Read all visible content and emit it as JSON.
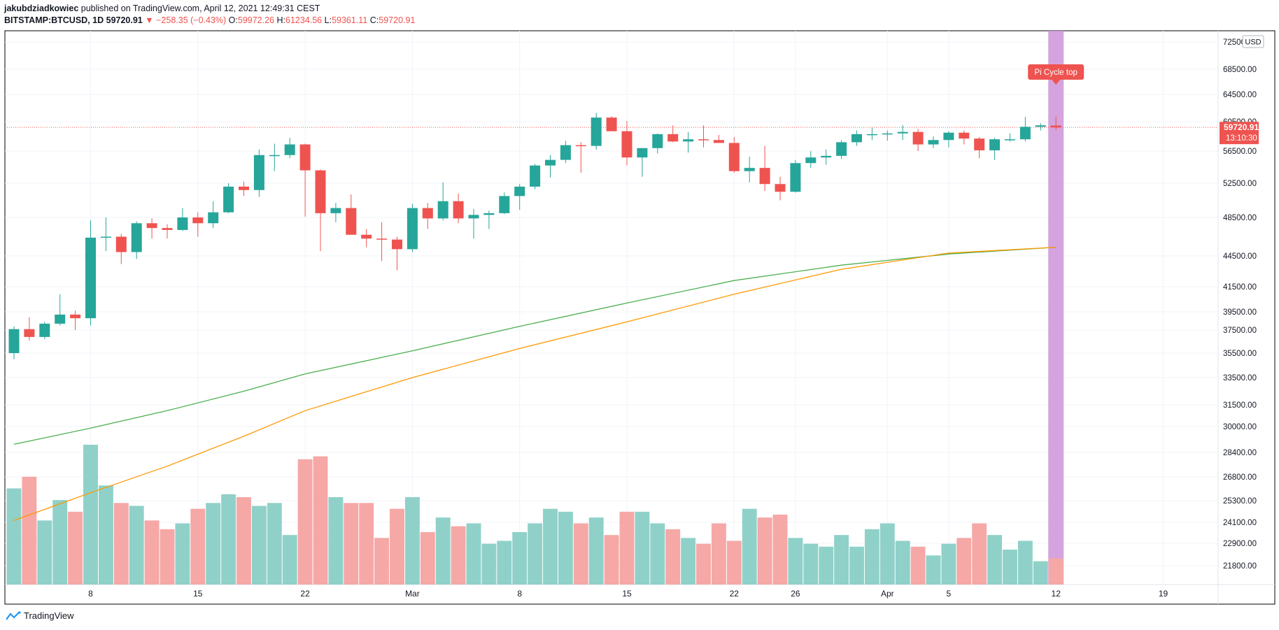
{
  "header": {
    "author": "jakubdziadkowiec",
    "published": "published on TradingView.com, April 12, 2021 12:49:31 CEST",
    "symbol": "BITSTAMP:BTCUSD, 1D",
    "last": "59720.91",
    "change": "−258.35 (−0.43%)",
    "o_label": "O:",
    "o": "59972.26",
    "h_label": "H:",
    "h": "61234.56",
    "l_label": "L:",
    "l": "59361.11",
    "c_label": "C:",
    "c": "59720.91"
  },
  "footer": {
    "brand": "TradingView"
  },
  "colors": {
    "up": "#26a69a",
    "down": "#ef5350",
    "vol_up": "#8fd1c8",
    "vol_down": "#f5a8a6",
    "ma_fast": "#ff9800",
    "ma_slow": "#4caf50",
    "highlight": "#ce93d8"
  },
  "chart_data": {
    "type": "candlestick",
    "title": "BITSTAMP:BTCUSD, 1D",
    "currency_label": "USD",
    "annotation": "Pi Cycle top",
    "last_price_label": "59720.91",
    "countdown_label": "13:10:30",
    "y_ticks": [
      "72500.00",
      "68500.00",
      "64500.00",
      "60500.00",
      "56500.00",
      "52500.00",
      "48500.00",
      "44500.00",
      "41500.00",
      "39500.00",
      "37500.00",
      "35500.00",
      "33500.00",
      "31500.00",
      "30000.00",
      "28400.00",
      "26800.00",
      "25300.00",
      "24100.00",
      "22900.00",
      "21800.00"
    ],
    "x_labels": [
      {
        "label": "8",
        "index": 5
      },
      {
        "label": "15",
        "index": 12
      },
      {
        "label": "22",
        "index": 19
      },
      {
        "label": "Mar",
        "index": 26
      },
      {
        "label": "8",
        "index": 33
      },
      {
        "label": "15",
        "index": 40
      },
      {
        "label": "22",
        "index": 47
      },
      {
        "label": "26",
        "index": 51
      },
      {
        "label": "Apr",
        "index": 57
      },
      {
        "label": "5",
        "index": 61
      },
      {
        "label": "12",
        "index": 68
      },
      {
        "label": "19",
        "index": 75
      }
    ],
    "highlight_index": 68,
    "ohlc": [
      [
        35500,
        37900,
        35000,
        37600
      ],
      [
        37600,
        38900,
        36600,
        36900
      ],
      [
        36900,
        38400,
        36700,
        38200
      ],
      [
        38200,
        40900,
        38000,
        39200
      ],
      [
        39200,
        39600,
        37500,
        38800
      ],
      [
        38800,
        48200,
        38000,
        46400
      ],
      [
        46400,
        48500,
        45000,
        46500
      ],
      [
        46500,
        46800,
        43700,
        44900
      ],
      [
        44900,
        48100,
        44200,
        47900
      ],
      [
        47900,
        48400,
        46300,
        47400
      ],
      [
        47400,
        47800,
        46300,
        47200
      ],
      [
        47200,
        49600,
        47100,
        48500
      ],
      [
        48500,
        49100,
        46500,
        47900
      ],
      [
        47900,
        50400,
        47400,
        49100
      ],
      [
        49100,
        52500,
        49000,
        52100
      ],
      [
        52100,
        52700,
        51000,
        51700
      ],
      [
        51700,
        56700,
        50900,
        56000
      ],
      [
        56000,
        57500,
        54000,
        56000
      ],
      [
        56000,
        58300,
        55600,
        57400
      ],
      [
        57400,
        57500,
        48600,
        54100
      ],
      [
        54100,
        54200,
        45000,
        49000
      ],
      [
        49000,
        50200,
        48000,
        49600
      ],
      [
        49600,
        51200,
        46800,
        46700
      ],
      [
        46700,
        47300,
        45400,
        46300
      ],
      [
        46300,
        48000,
        44000,
        46200
      ],
      [
        46200,
        46500,
        43100,
        45200
      ],
      [
        45200,
        50100,
        44900,
        49600
      ],
      [
        49600,
        50200,
        47300,
        48400
      ],
      [
        48400,
        52600,
        48200,
        50400
      ],
      [
        50400,
        51300,
        47900,
        48400
      ],
      [
        48400,
        49500,
        46300,
        48800
      ],
      [
        48800,
        49300,
        47300,
        49000
      ],
      [
        49000,
        51400,
        48900,
        51000
      ],
      [
        51000,
        52400,
        49400,
        52100
      ],
      [
        52100,
        54900,
        51800,
        54700
      ],
      [
        54700,
        56000,
        53200,
        55400
      ],
      [
        55400,
        57900,
        55000,
        57300
      ],
      [
        57300,
        57700,
        53800,
        57200
      ],
      [
        57200,
        61800,
        56700,
        61100
      ],
      [
        61100,
        61300,
        59200,
        59200
      ],
      [
        59200,
        60600,
        54700,
        55700
      ],
      [
        55700,
        56700,
        53300,
        56900
      ],
      [
        56900,
        58900,
        56200,
        58800
      ],
      [
        58800,
        60000,
        57700,
        57800
      ],
      [
        57800,
        59100,
        56300,
        58100
      ],
      [
        58100,
        60000,
        57000,
        58000
      ],
      [
        58000,
        58700,
        57600,
        57600
      ],
      [
        57600,
        58400,
        53800,
        54000
      ],
      [
        54000,
        55800,
        52600,
        54400
      ],
      [
        54400,
        57200,
        51600,
        52400
      ],
      [
        52400,
        53300,
        50500,
        51500
      ],
      [
        51500,
        55400,
        51400,
        55000
      ],
      [
        55000,
        56500,
        54400,
        55700
      ],
      [
        55700,
        56700,
        54800,
        55900
      ],
      [
        55900,
        58000,
        55500,
        57700
      ],
      [
        57700,
        59300,
        57200,
        58800
      ],
      [
        58800,
        59700,
        58000,
        58800
      ],
      [
        58800,
        59300,
        57900,
        58900
      ],
      [
        58900,
        60000,
        58000,
        59100
      ],
      [
        59100,
        59500,
        56500,
        57400
      ],
      [
        57400,
        58500,
        56900,
        58000
      ],
      [
        58000,
        59200,
        57000,
        59000
      ],
      [
        59000,
        59300,
        57400,
        58200
      ],
      [
        58200,
        58400,
        55600,
        56600
      ],
      [
        56600,
        58300,
        55400,
        58100
      ],
      [
        58100,
        58900,
        57800,
        58100
      ],
      [
        58100,
        61200,
        57800,
        59800
      ],
      [
        59800,
        60300,
        59300,
        60000
      ],
      [
        59972,
        61234,
        59361,
        59721
      ]
    ],
    "volume": [
      33,
      37,
      22,
      29,
      25,
      48,
      34,
      28,
      27,
      22,
      19,
      21,
      26,
      28,
      31,
      30,
      27,
      28,
      17,
      43,
      44,
      30,
      28,
      28,
      16,
      26,
      30,
      18,
      23,
      20,
      21,
      14,
      15,
      18,
      21,
      26,
      25,
      21,
      23,
      17,
      25,
      25,
      21,
      19,
      16,
      14,
      21,
      15,
      26,
      23,
      24,
      16,
      14,
      13,
      17,
      13,
      19,
      21,
      15,
      13,
      10,
      14,
      16,
      21,
      17,
      12,
      15,
      8,
      9
    ],
    "ma_slow": [
      {
        "index": 0,
        "value": 28900
      },
      {
        "index": 5,
        "value": 29900
      },
      {
        "index": 10,
        "value": 31100
      },
      {
        "index": 15,
        "value": 32500
      },
      {
        "index": 19,
        "value": 33800
      },
      {
        "index": 26,
        "value": 35700
      },
      {
        "index": 33,
        "value": 37900
      },
      {
        "index": 40,
        "value": 40200
      },
      {
        "index": 47,
        "value": 42100
      },
      {
        "index": 54,
        "value": 43600
      },
      {
        "index": 61,
        "value": 44700
      },
      {
        "index": 68,
        "value": 45400
      }
    ],
    "ma_fast": [
      {
        "index": 0,
        "value": 24200
      },
      {
        "index": 5,
        "value": 25800
      },
      {
        "index": 10,
        "value": 27500
      },
      {
        "index": 15,
        "value": 29400
      },
      {
        "index": 19,
        "value": 31100
      },
      {
        "index": 26,
        "value": 33500
      },
      {
        "index": 33,
        "value": 35900
      },
      {
        "index": 40,
        "value": 38400
      },
      {
        "index": 47,
        "value": 40900
      },
      {
        "index": 54,
        "value": 43200
      },
      {
        "index": 61,
        "value": 44800
      },
      {
        "index": 68,
        "value": 45400
      }
    ]
  }
}
